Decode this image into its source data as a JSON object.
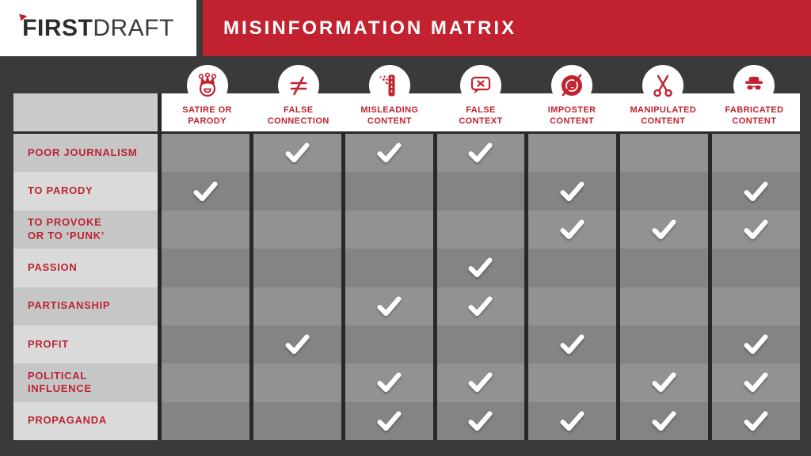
{
  "header": {
    "logo_bold": "FIRST",
    "logo_regular": "DRAFT",
    "title": "MISINFORMATION MATRIX"
  },
  "colors": {
    "brand_red": "#c2222f",
    "row_label_red": "#bb2432",
    "background_dark": "#3a3a3a",
    "separator_dark": "#282828",
    "header_strip": "#ffffff",
    "corner_cell": "#cbcbcb",
    "row_label_dark": "#c6c6c6",
    "row_label_light": "#dadada",
    "cell_light": "#929292",
    "cell_dark": "#848484",
    "check": "#ffffff"
  },
  "chart_data": {
    "type": "table",
    "title": "MISINFORMATION MATRIX",
    "columns": [
      {
        "label": "SATIRE OR\nPARODY",
        "icon": "jester-icon"
      },
      {
        "label": "FALSE\nCONNECTION",
        "icon": "not-equal-icon"
      },
      {
        "label": "MISLEADING\nCONTENT",
        "icon": "diverging-road-icon"
      },
      {
        "label": "FALSE\nCONTEXT",
        "icon": "speech-bubble-x-icon"
      },
      {
        "label": "IMPOSTER\nCONTENT",
        "icon": "crossed-copyright-icon"
      },
      {
        "label": "MANIPULATED\nCONTENT",
        "icon": "scissors-icon"
      },
      {
        "label": "FABRICATED\nCONTENT",
        "icon": "spy-icon"
      }
    ],
    "rows": [
      "POOR JOURNALISM",
      "TO PARODY",
      "TO PROVOKE\nOR TO ‘PUNK’",
      "PASSION",
      "PARTISANSHIP",
      "PROFIT",
      "POLITICAL\nINFLUENCE",
      "PROPAGANDA"
    ],
    "checks": [
      [
        0,
        1,
        1,
        1,
        0,
        0,
        0
      ],
      [
        1,
        0,
        0,
        0,
        1,
        0,
        1
      ],
      [
        0,
        0,
        0,
        0,
        1,
        1,
        1
      ],
      [
        0,
        0,
        0,
        1,
        0,
        0,
        0
      ],
      [
        0,
        0,
        1,
        1,
        0,
        0,
        0
      ],
      [
        0,
        1,
        0,
        0,
        1,
        0,
        1
      ],
      [
        0,
        0,
        1,
        1,
        0,
        1,
        1
      ],
      [
        0,
        0,
        1,
        1,
        1,
        1,
        1
      ]
    ],
    "check_symbol": "✓"
  }
}
